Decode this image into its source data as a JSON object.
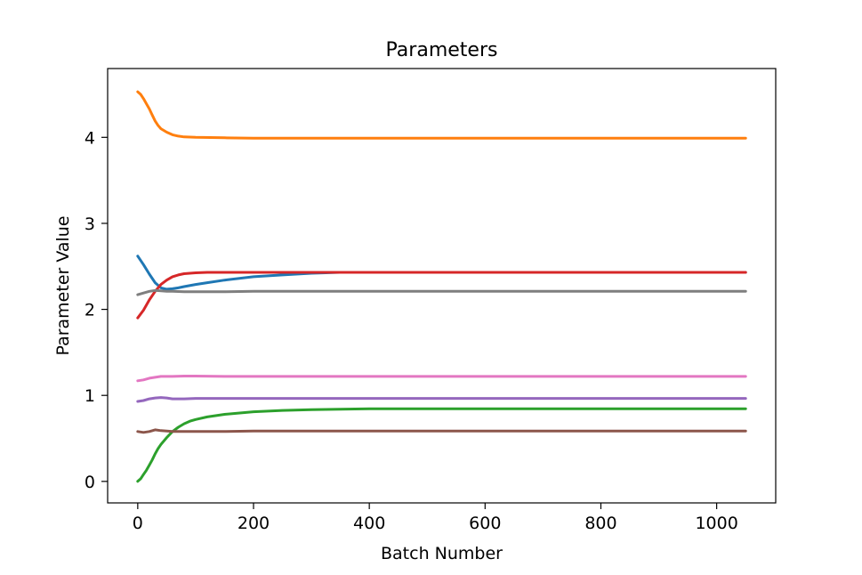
{
  "chart_data": {
    "type": "line",
    "title": "Parameters",
    "xlabel": "Batch Number",
    "ylabel": "Parameter Value",
    "xlim": [
      -52,
      1102
    ],
    "ylim": [
      -0.25,
      4.8
    ],
    "xticks": [
      0,
      200,
      400,
      600,
      800,
      1000
    ],
    "yticks": [
      0,
      1,
      2,
      3,
      4
    ],
    "grid": false,
    "legend": "none",
    "series": [
      {
        "color": "#ff7f0e",
        "x": [
          0,
          5,
          10,
          15,
          20,
          25,
          30,
          35,
          40,
          50,
          60,
          70,
          80,
          100,
          150,
          200,
          300,
          400,
          600,
          800,
          1000,
          1050
        ],
        "values": [
          4.53,
          4.5,
          4.45,
          4.39,
          4.33,
          4.26,
          4.19,
          4.14,
          4.1,
          4.06,
          4.03,
          4.015,
          4.005,
          4.0,
          3.995,
          3.99,
          3.99,
          3.99,
          3.99,
          3.99,
          3.99,
          3.99
        ]
      },
      {
        "color": "#1f77b4",
        "x": [
          0,
          10,
          20,
          30,
          40,
          50,
          60,
          70,
          80,
          100,
          120,
          150,
          200,
          250,
          300,
          350,
          400,
          600,
          800,
          1050
        ],
        "values": [
          2.62,
          2.52,
          2.41,
          2.31,
          2.25,
          2.235,
          2.24,
          2.25,
          2.265,
          2.29,
          2.31,
          2.34,
          2.38,
          2.4,
          2.42,
          2.43,
          2.43,
          2.43,
          2.43,
          2.43
        ]
      },
      {
        "color": "#d62728",
        "x": [
          0,
          10,
          20,
          30,
          40,
          50,
          60,
          70,
          80,
          100,
          120,
          150,
          200,
          400,
          600,
          800,
          1050
        ],
        "values": [
          1.9,
          1.99,
          2.11,
          2.21,
          2.29,
          2.34,
          2.38,
          2.4,
          2.415,
          2.425,
          2.43,
          2.43,
          2.43,
          2.43,
          2.43,
          2.43,
          2.43
        ]
      },
      {
        "color": "#7f7f7f",
        "x": [
          0,
          10,
          20,
          30,
          40,
          50,
          60,
          80,
          100,
          150,
          200,
          400,
          600,
          800,
          1050
        ],
        "values": [
          2.17,
          2.19,
          2.21,
          2.22,
          2.215,
          2.21,
          2.21,
          2.205,
          2.205,
          2.205,
          2.21,
          2.21,
          2.21,
          2.21,
          2.21
        ]
      },
      {
        "color": "#e377c2",
        "x": [
          0,
          10,
          20,
          30,
          40,
          50,
          60,
          80,
          100,
          150,
          200,
          400,
          600,
          800,
          1050
        ],
        "values": [
          1.17,
          1.18,
          1.2,
          1.21,
          1.22,
          1.22,
          1.22,
          1.225,
          1.225,
          1.22,
          1.22,
          1.22,
          1.22,
          1.22,
          1.22
        ]
      },
      {
        "color": "#9467bd",
        "x": [
          0,
          10,
          20,
          30,
          40,
          50,
          60,
          70,
          80,
          100,
          150,
          200,
          400,
          600,
          800,
          1050
        ],
        "values": [
          0.93,
          0.94,
          0.96,
          0.97,
          0.975,
          0.97,
          0.96,
          0.96,
          0.96,
          0.965,
          0.965,
          0.965,
          0.965,
          0.965,
          0.965,
          0.965
        ]
      },
      {
        "color": "#2ca02c",
        "x": [
          0,
          5,
          10,
          15,
          20,
          25,
          30,
          35,
          40,
          50,
          60,
          70,
          80,
          90,
          100,
          120,
          150,
          200,
          250,
          300,
          350,
          400,
          600,
          800,
          1050
        ],
        "values": [
          0.0,
          0.03,
          0.08,
          0.13,
          0.19,
          0.25,
          0.32,
          0.38,
          0.43,
          0.51,
          0.58,
          0.63,
          0.67,
          0.7,
          0.72,
          0.75,
          0.78,
          0.81,
          0.825,
          0.835,
          0.84,
          0.845,
          0.845,
          0.845,
          0.845
        ]
      },
      {
        "color": "#8c564b",
        "x": [
          0,
          10,
          20,
          30,
          40,
          50,
          60,
          80,
          100,
          150,
          200,
          400,
          600,
          800,
          1050
        ],
        "values": [
          0.58,
          0.57,
          0.58,
          0.6,
          0.59,
          0.585,
          0.58,
          0.58,
          0.58,
          0.58,
          0.585,
          0.585,
          0.585,
          0.585,
          0.585
        ]
      }
    ]
  }
}
